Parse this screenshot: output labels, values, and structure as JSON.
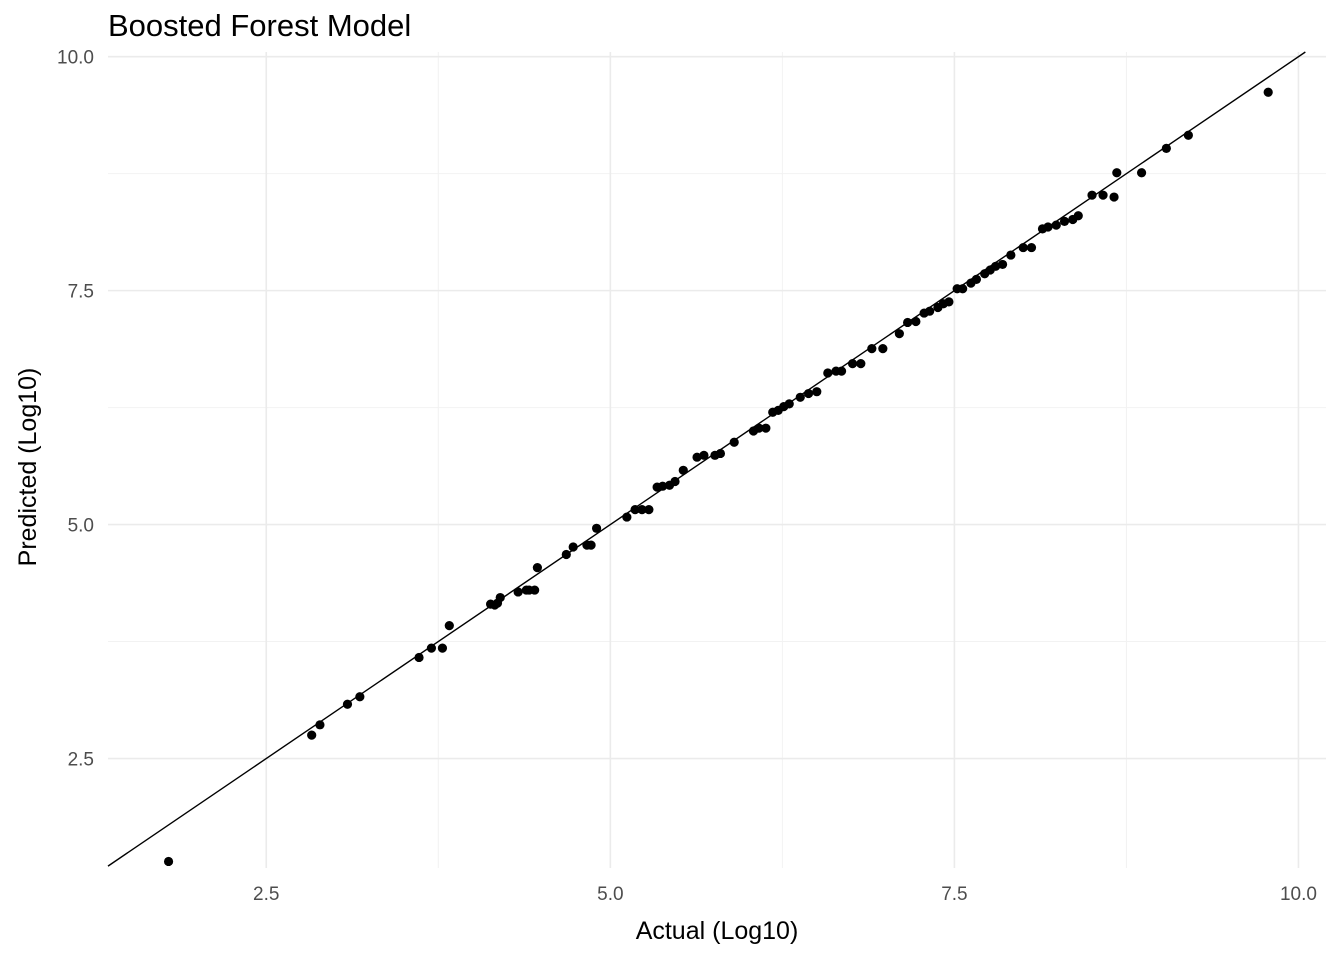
{
  "chart_data": {
    "type": "scatter",
    "title": "Boosted Forest Model",
    "xlabel": "Actual (Log10)",
    "ylabel": "Predicted (Log10)",
    "xlim": [
      1.35,
      10.2
    ],
    "ylim": [
      1.33,
      10.05
    ],
    "x_ticks": [
      2.5,
      5.0,
      7.5,
      10.0
    ],
    "x_tick_labels": [
      "2.5",
      "5.0",
      "7.5",
      "10.0"
    ],
    "y_ticks": [
      2.5,
      5.0,
      7.5,
      10.0
    ],
    "y_tick_labels": [
      "2.5",
      "5.0",
      "7.5",
      "10.0"
    ],
    "grid": true,
    "reference_line": {
      "slope": 1,
      "intercept": 0
    },
    "colors": {
      "points": "#000000",
      "line": "#000000",
      "grid_major": "#ebebeb",
      "grid_minor": "#f2f2f2"
    },
    "points": [
      [
        1.79,
        1.4
      ],
      [
        2.83,
        2.75
      ],
      [
        2.89,
        2.86
      ],
      [
        3.09,
        3.08
      ],
      [
        3.18,
        3.16
      ],
      [
        3.61,
        3.58
      ],
      [
        3.7,
        3.68
      ],
      [
        3.78,
        3.68
      ],
      [
        3.83,
        3.92
      ],
      [
        4.13,
        4.15
      ],
      [
        4.16,
        4.14
      ],
      [
        4.18,
        4.16
      ],
      [
        4.2,
        4.22
      ],
      [
        4.33,
        4.28
      ],
      [
        4.39,
        4.3
      ],
      [
        4.41,
        4.3
      ],
      [
        4.45,
        4.3
      ],
      [
        4.47,
        4.54
      ],
      [
        4.68,
        4.68
      ],
      [
        4.73,
        4.76
      ],
      [
        4.83,
        4.78
      ],
      [
        4.86,
        4.78
      ],
      [
        4.9,
        4.96
      ],
      [
        5.12,
        5.08
      ],
      [
        5.18,
        5.16
      ],
      [
        5.23,
        5.16
      ],
      [
        5.28,
        5.16
      ],
      [
        5.34,
        5.4
      ],
      [
        5.38,
        5.41
      ],
      [
        5.43,
        5.42
      ],
      [
        5.47,
        5.46
      ],
      [
        5.53,
        5.58
      ],
      [
        5.63,
        5.72
      ],
      [
        5.68,
        5.74
      ],
      [
        5.76,
        5.74
      ],
      [
        5.8,
        5.76
      ],
      [
        5.9,
        5.88
      ],
      [
        6.04,
        6.0
      ],
      [
        6.08,
        6.03
      ],
      [
        6.13,
        6.03
      ],
      [
        6.18,
        6.2
      ],
      [
        6.22,
        6.22
      ],
      [
        6.26,
        6.26
      ],
      [
        6.3,
        6.29
      ],
      [
        6.38,
        6.36
      ],
      [
        6.44,
        6.4
      ],
      [
        6.5,
        6.42
      ],
      [
        6.58,
        6.62
      ],
      [
        6.64,
        6.64
      ],
      [
        6.68,
        6.64
      ],
      [
        6.76,
        6.72
      ],
      [
        6.82,
        6.72
      ],
      [
        6.9,
        6.88
      ],
      [
        6.98,
        6.88
      ],
      [
        7.1,
        7.04
      ],
      [
        7.16,
        7.16
      ],
      [
        7.22,
        7.17
      ],
      [
        7.28,
        7.26
      ],
      [
        7.32,
        7.28
      ],
      [
        7.38,
        7.32
      ],
      [
        7.42,
        7.36
      ],
      [
        7.46,
        7.38
      ],
      [
        7.52,
        7.52
      ],
      [
        7.56,
        7.52
      ],
      [
        7.62,
        7.58
      ],
      [
        7.66,
        7.62
      ],
      [
        7.72,
        7.68
      ],
      [
        7.76,
        7.72
      ],
      [
        7.8,
        7.76
      ],
      [
        7.85,
        7.78
      ],
      [
        7.91,
        7.88
      ],
      [
        8.0,
        7.96
      ],
      [
        8.06,
        7.96
      ],
      [
        8.14,
        8.16
      ],
      [
        8.18,
        8.18
      ],
      [
        8.24,
        8.2
      ],
      [
        8.3,
        8.24
      ],
      [
        8.36,
        8.26
      ],
      [
        8.4,
        8.3
      ],
      [
        8.5,
        8.52
      ],
      [
        8.58,
        8.52
      ],
      [
        8.66,
        8.5
      ],
      [
        8.68,
        8.76
      ],
      [
        8.86,
        8.76
      ],
      [
        9.04,
        9.02
      ],
      [
        9.2,
        9.16
      ],
      [
        9.78,
        9.62
      ]
    ]
  }
}
